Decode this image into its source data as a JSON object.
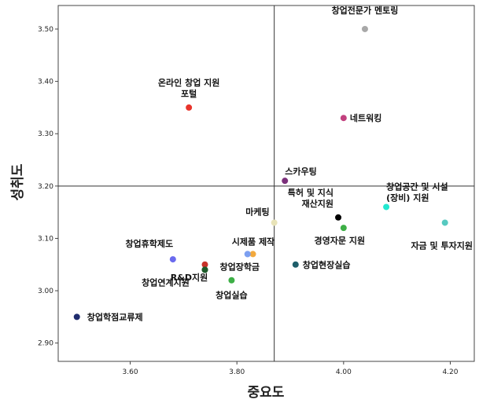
{
  "chart_data": {
    "type": "scatter",
    "xlabel": "중요도",
    "ylabel": "성취도",
    "xlim": [
      3.465,
      4.245
    ],
    "ylim": [
      2.865,
      3.545
    ],
    "x_ticks": [
      "3.60",
      "3.80",
      "4.00",
      "4.20"
    ],
    "x_tick_values": [
      3.6,
      3.8,
      4.0,
      4.2
    ],
    "y_ticks": [
      "2.90",
      "3.00",
      "3.10",
      "3.20",
      "3.30",
      "3.40",
      "3.50"
    ],
    "y_tick_values": [
      2.9,
      3.0,
      3.1,
      3.2,
      3.3,
      3.4,
      3.5
    ],
    "reference_lines": {
      "x": 3.87,
      "y": 3.2
    },
    "grid": false,
    "points": [
      {
        "label": [
          "창업전문가 멘토링"
        ],
        "x": 4.04,
        "y": 3.5,
        "color": "#a8a8a8"
      },
      {
        "label": [
          "온라인 창업 지원",
          "포털"
        ],
        "x": 3.71,
        "y": 3.35,
        "color": "#e8342b"
      },
      {
        "label": [
          "네트워킹"
        ],
        "x": 4.0,
        "y": 3.33,
        "color": "#c2407e"
      },
      {
        "label": [
          "스카우팅"
        ],
        "x": 3.89,
        "y": 3.21,
        "color": "#7b2f7a"
      },
      {
        "label": [
          "특허 및 지식",
          "재산지원"
        ],
        "x": 3.99,
        "y": 3.14,
        "color": "#000000"
      },
      {
        "label": [
          "창업공간 및 시설",
          "(장비) 지원"
        ],
        "x": 4.08,
        "y": 3.16,
        "color": "#22e8d0"
      },
      {
        "label": [
          "마케팅"
        ],
        "x": 3.87,
        "y": 3.13,
        "color": "#e8e3b8"
      },
      {
        "label": [
          "자금 및 투자지원"
        ],
        "x": 4.19,
        "y": 3.13,
        "color": "#56c9c0"
      },
      {
        "label": [
          "경영자문 지원"
        ],
        "x": 4.0,
        "y": 3.12,
        "color": "#3daf46"
      },
      {
        "label": [
          "시제품 제작"
        ],
        "x": 3.82,
        "y": 3.07,
        "color": "#7c9ff0"
      },
      {
        "label": [
          ""
        ],
        "x": 3.83,
        "y": 3.07,
        "color": "#f2a93d"
      },
      {
        "label": [
          "창업휴학제도"
        ],
        "x": 3.68,
        "y": 3.06,
        "color": "#6a6aee"
      },
      {
        "label": [
          "R&D지원"
        ],
        "x": 3.74,
        "y": 3.05,
        "color": "#c8322a"
      },
      {
        "label": [
          ""
        ],
        "x": 3.74,
        "y": 3.04,
        "color": "#1e5b2a"
      },
      {
        "label": [
          "창업장학금"
        ],
        "x": 3.82,
        "y": 3.07,
        "color": "#7c9ff0"
      },
      {
        "label": [
          "창업현장실습"
        ],
        "x": 3.91,
        "y": 3.05,
        "color": "#1e5e6a"
      },
      {
        "label": [
          "창업연계지원"
        ],
        "x": 3.74,
        "y": 3.04,
        "color": "#1e5b2a"
      },
      {
        "label": [
          "창업실습"
        ],
        "x": 3.79,
        "y": 3.02,
        "color": "#3daf46"
      },
      {
        "label": [
          "창업학점교류제"
        ],
        "x": 3.5,
        "y": 2.95,
        "color": "#1f2c6e"
      }
    ]
  }
}
